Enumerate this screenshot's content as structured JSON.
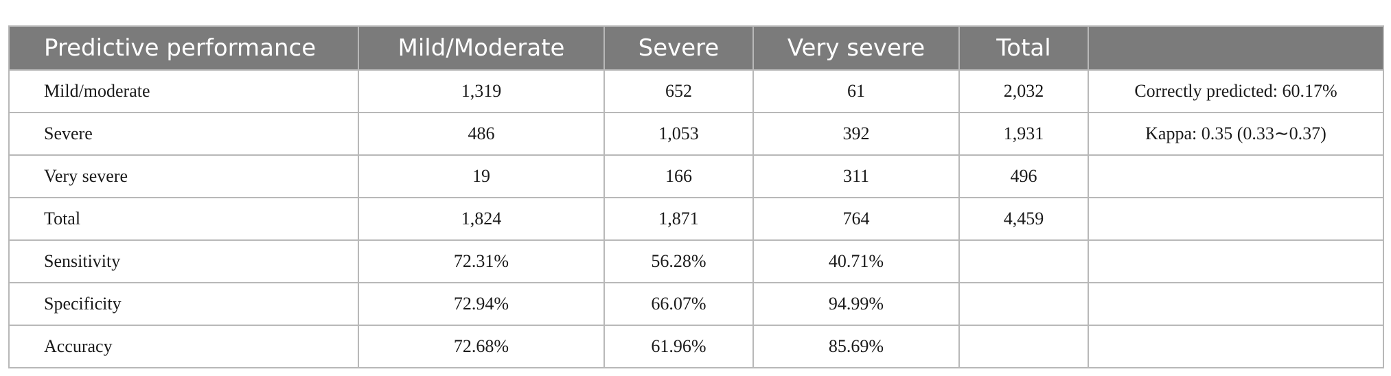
{
  "table": {
    "headers": [
      "Predictive performance",
      "Mild/Moderate",
      "Severe",
      "Very severe",
      "Total",
      ""
    ],
    "rows": [
      [
        "Mild/moderate",
        "1,319",
        "652",
        "61",
        "2,032",
        "Correctly predicted: 60.17%"
      ],
      [
        "Severe",
        "486",
        "1,053",
        "392",
        "1,931",
        "Kappa: 0.35 (0.33∼0.37)"
      ],
      [
        "Very severe",
        "19",
        "166",
        "311",
        "496",
        ""
      ],
      [
        "Total",
        "1,824",
        "1,871",
        "764",
        "4,459",
        ""
      ],
      [
        "Sensitivity",
        "72.31%",
        "56.28%",
        "40.71%",
        "",
        ""
      ],
      [
        "Specificity",
        "72.94%",
        "66.07%",
        "94.99%",
        "",
        ""
      ],
      [
        "Accuracy",
        "72.68%",
        "61.96%",
        "85.69%",
        "",
        ""
      ]
    ]
  }
}
